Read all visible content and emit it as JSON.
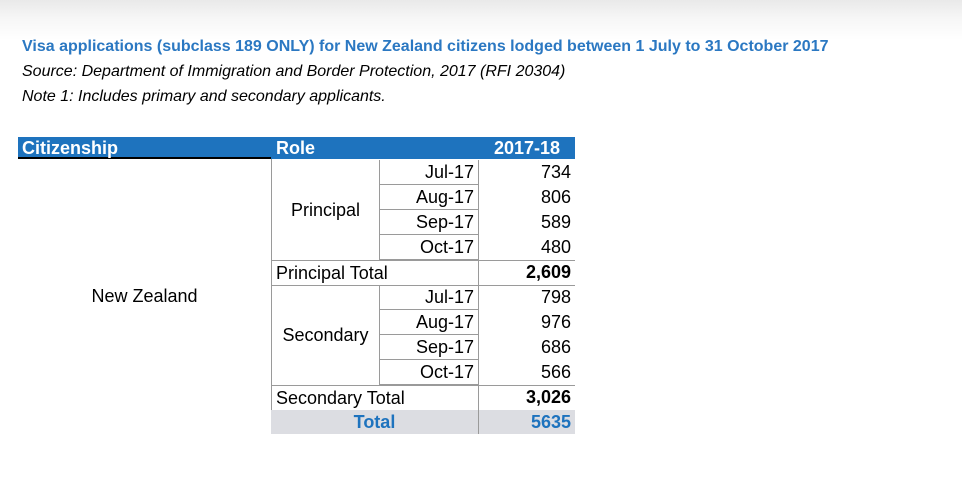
{
  "header": {
    "title": "Visa applications (subclass 189 ONLY) for New Zealand citizens lodged between 1 July to 31 October 2017",
    "source": "Source: Department of Immigration and Border Protection, 2017 (RFI 20304)",
    "note": "Note 1: Includes primary and secondary applicants."
  },
  "table": {
    "columns": {
      "citizenship": "Citizenship",
      "role": "Role",
      "year": "2017-18"
    },
    "citizenship": "New Zealand",
    "groups": [
      {
        "role": "Principal",
        "rows": [
          {
            "month": "Jul-17",
            "value": "734"
          },
          {
            "month": "Aug-17",
            "value": "806"
          },
          {
            "month": "Sep-17",
            "value": "589"
          },
          {
            "month": "Oct-17",
            "value": "480"
          }
        ],
        "total_label": "Principal Total",
        "total_value": "2,609"
      },
      {
        "role": "Secondary",
        "rows": [
          {
            "month": "Jul-17",
            "value": "798"
          },
          {
            "month": "Aug-17",
            "value": "976"
          },
          {
            "month": "Sep-17",
            "value": "686"
          },
          {
            "month": "Oct-17",
            "value": "566"
          }
        ],
        "total_label": "Secondary Total",
        "total_value": "3,026"
      }
    ],
    "grand_total_label": "Total",
    "grand_total_value": "5635"
  },
  "colors": {
    "title": "#2b78c2",
    "header_bg": "#1e73be",
    "grand_total_bg": "#dcdde2"
  }
}
